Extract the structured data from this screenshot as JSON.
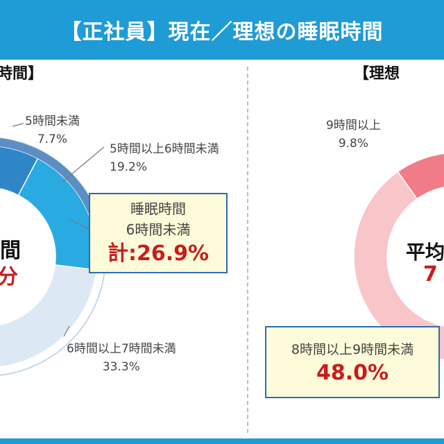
{
  "title": "【正社員】現在／理想の睡眠時間",
  "left": {
    "heading": "時間】",
    "center_top": "間",
    "center_bottom": "分",
    "callout": {
      "line1": "睡眠時間",
      "line2": "6時間未満",
      "total": "計:26.9%"
    }
  },
  "right": {
    "heading": "【理想",
    "center_top": "平均",
    "center_bottom": "7",
    "callout": {
      "line1": "8時間以上9時間未満",
      "total": "48.0%"
    }
  },
  "chart_data": [
    {
      "type": "pie",
      "variant": "donut",
      "title": "",
      "slices": [
        {
          "label": "5時間未満",
          "value": 7.7,
          "color": "#2e86c8"
        },
        {
          "label": "5時間以上6時間未満",
          "value": 19.2,
          "color": "#29abe2"
        },
        {
          "label": "6時間以上7時間未満",
          "value": 33.3,
          "color": "#dce9f5"
        }
      ],
      "data_labels": [
        {
          "name": "5時間未満",
          "value": "7.7%"
        },
        {
          "name": "5時間以上6時間未満",
          "value": "19.2%"
        },
        {
          "name": "6時間以上7時間未満",
          "value": "33.3%"
        }
      ]
    },
    {
      "type": "pie",
      "variant": "donut",
      "title": "",
      "slices": [
        {
          "label": "9時間以上",
          "value": 9.8,
          "color": "#f07c87"
        },
        {
          "label": "8時間以上9時間未満",
          "value": 48.0,
          "color": "#f8c5c8"
        }
      ],
      "data_labels": [
        {
          "name": "9時間以上",
          "value": "9.8%"
        },
        {
          "name": "8時間以上9時間未満",
          "value": "48.0%"
        }
      ]
    }
  ]
}
